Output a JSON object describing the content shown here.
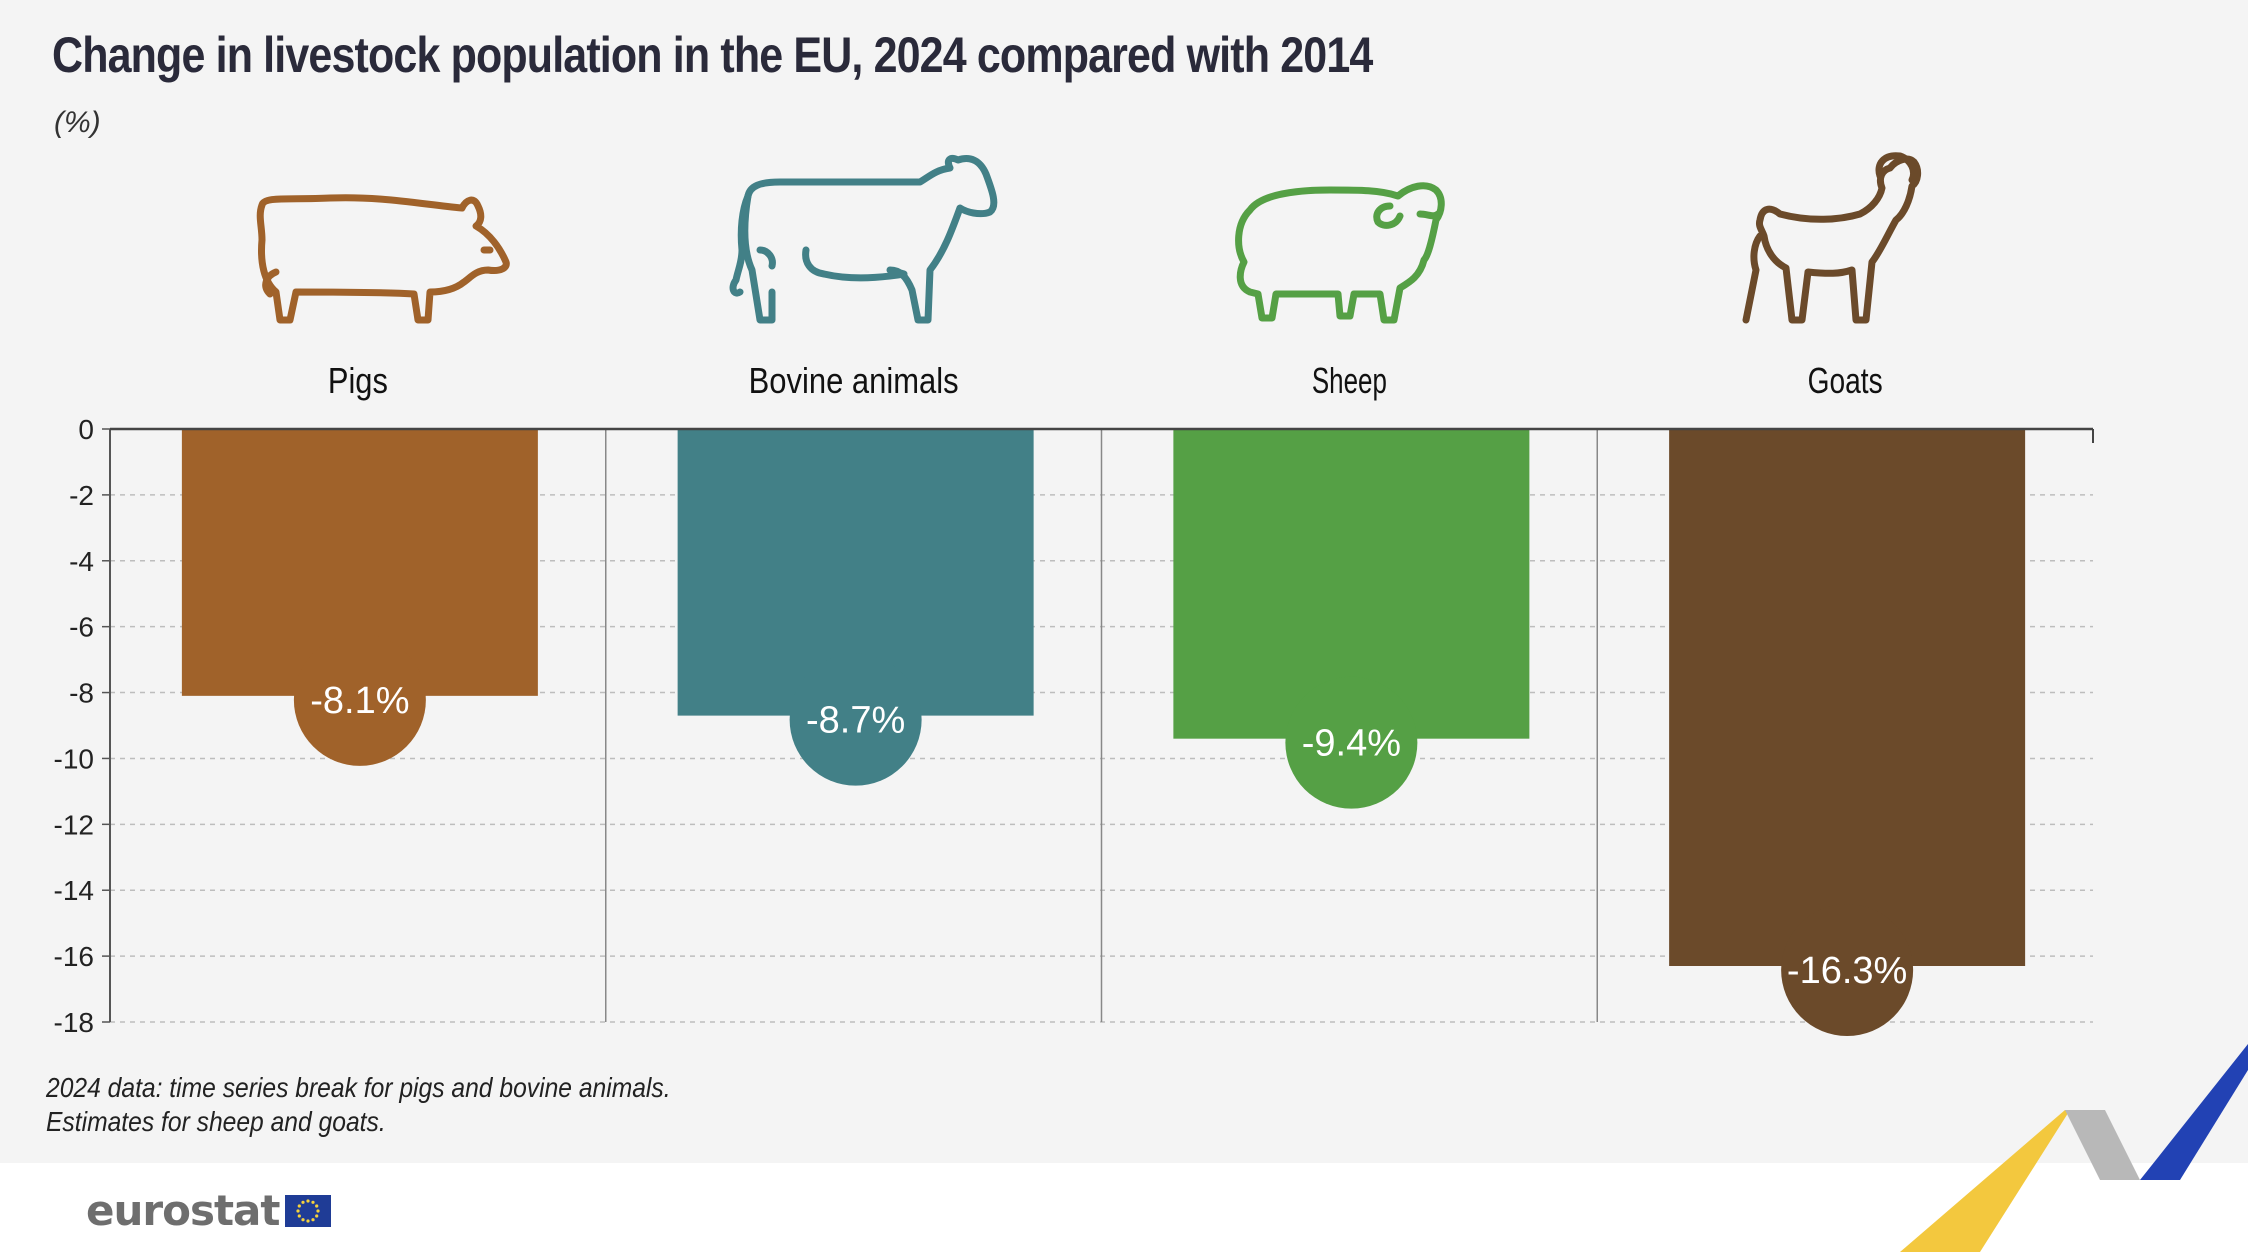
{
  "chart_data": {
    "type": "bar",
    "title": "Change in livestock population in the EU, 2024 compared with 2014",
    "unit": "(%)",
    "categories": [
      "Pigs",
      "Bovine animals",
      "Sheep",
      "Goats"
    ],
    "values": [
      -8.1,
      -8.7,
      -9.4,
      -16.3
    ],
    "value_labels": [
      "-8.1%",
      "-8.7%",
      "-9.4%",
      "-16.3%"
    ],
    "colors": [
      "#a0622a",
      "#428087",
      "#55a045",
      "#6b4a2a"
    ],
    "icons": [
      "pig-icon",
      "cow-icon",
      "sheep-icon",
      "goat-icon"
    ],
    "ylim": [
      -18,
      0
    ],
    "yticks": [
      0,
      -2,
      -4,
      -6,
      -8,
      -10,
      -12,
      -14,
      -16,
      -18
    ],
    "grid": true,
    "notes": [
      "2024 data: time series break for pigs and bovine animals.",
      "Estimates for sheep and goats."
    ]
  },
  "brand": {
    "name": "eurostat"
  }
}
